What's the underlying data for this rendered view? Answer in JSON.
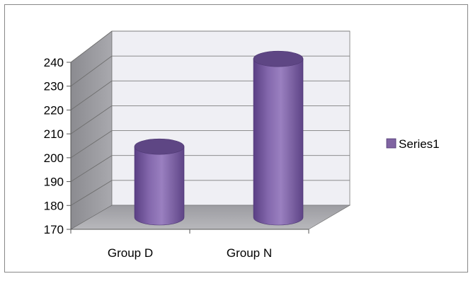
{
  "chart_data": {
    "type": "bar",
    "style": "3d-cylinder",
    "categories": [
      "Group D",
      "Group N"
    ],
    "series": [
      {
        "name": "Series1",
        "values": [
          199,
          235
        ]
      }
    ],
    "ylim": [
      170,
      240
    ],
    "yticks": [
      "240",
      "230",
      "220",
      "210",
      "200",
      "190",
      "180",
      "170"
    ],
    "grid": true,
    "legend": "right",
    "colors": {
      "bar": "#8064A2",
      "bar_top": "#5E4684",
      "back_wall": "#EFEFF4",
      "side_wall": "#9A9A9E",
      "floor": "#A8A8AC",
      "legend_swatch": "#8064A2"
    }
  }
}
